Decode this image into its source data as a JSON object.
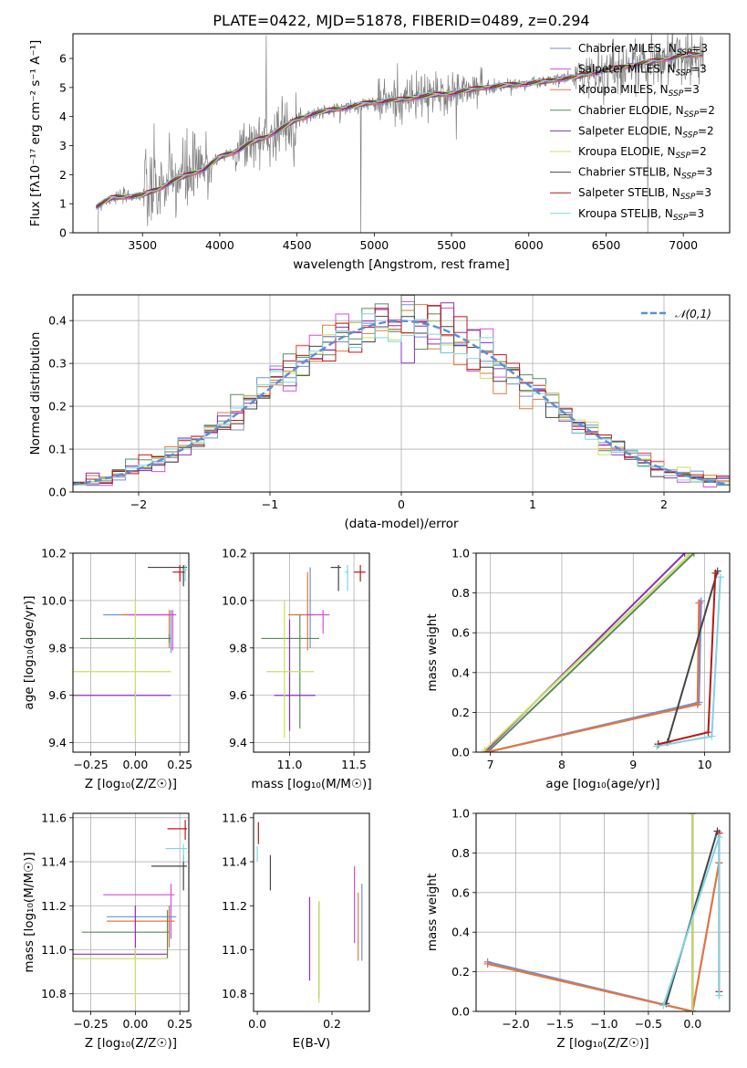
{
  "figure": {
    "title": "PLATE=0422, MJD=51878, FIBERID=0489, z=0.294"
  },
  "colors": {
    "Chabrier MILES": "#6f8fd6",
    "Salpeter MILES": "#d64fd6",
    "Kroupa MILES": "#e07a3a",
    "Chabrier ELODIE": "#5a8a5a",
    "Salpeter ELODIE": "#8e2fb5",
    "Kroupa ELODIE": "#c8e060",
    "Chabrier STELIB": "#444444",
    "Salpeter STELIB": "#b81818",
    "Kroupa STELIB": "#80d4e0",
    "data": "#808080",
    "normal": "#5b8ed6"
  },
  "chart_data": [
    {
      "id": "spectrum",
      "type": "line",
      "title": "PLATE=0422, MJD=51878, FIBERID=0489, z=0.294",
      "xlabel": "wavelength [Angstrom, rest frame]",
      "ylabel": "Flux [fλ10⁻¹⁷ erg cm⁻² s⁻¹ A⁻¹]",
      "xlim": [
        3050,
        7300
      ],
      "ylim": [
        0,
        6.85
      ],
      "xticks": [
        3500,
        4000,
        4500,
        5000,
        5500,
        6000,
        6500,
        7000
      ],
      "yticks": [
        0,
        1,
        2,
        3,
        4,
        5,
        6
      ],
      "grid": false,
      "legend": "top-right",
      "legend_entries": [
        "Chabrier MILES, N_SSP=3",
        "Salpeter MILES, N_SSP=3",
        "Kroupa MILES, N_SSP=3",
        "Chabrier ELODIE, N_SSP=2",
        "Salpeter ELODIE, N_SSP=2",
        "Kroupa ELODIE, N_SSP=2",
        "Chabrier STELIB, N_SSP=3",
        "Salpeter STELIB, N_SSP=3",
        "Kroupa STELIB, N_SSP=3"
      ],
      "model_x": [
        3200,
        3300,
        3400,
        3500,
        3600,
        3700,
        3800,
        3900,
        4000,
        4100,
        4200,
        4300,
        4400,
        4500,
        4600,
        4700,
        4800,
        4900,
        5000,
        5100,
        5200,
        5300,
        5400,
        5500,
        5600,
        5700,
        5800,
        5900,
        6000,
        6100,
        6200,
        6300,
        6400,
        6500,
        6600,
        6700,
        6800,
        6900,
        7000,
        7100
      ],
      "model_y": [
        0.9,
        1.2,
        1.25,
        1.3,
        1.5,
        1.8,
        2.0,
        2.2,
        2.6,
        2.8,
        3.1,
        3.3,
        3.6,
        3.9,
        4.1,
        4.2,
        4.3,
        4.4,
        4.5,
        4.55,
        4.6,
        4.7,
        4.75,
        4.8,
        4.9,
        5.0,
        5.05,
        5.1,
        5.15,
        5.2,
        5.3,
        5.35,
        5.5,
        5.6,
        5.7,
        5.8,
        5.9,
        6.0,
        6.1,
        6.15
      ]
    },
    {
      "id": "residuals",
      "type": "bar",
      "xlabel": "(data-model)/error",
      "ylabel": "Normed distribution",
      "xlim": [
        -2.5,
        2.5
      ],
      "ylim": [
        0,
        0.46
      ],
      "xticks": [
        -2,
        -1,
        0,
        1,
        2
      ],
      "yticks": [
        0.0,
        0.1,
        0.2,
        0.3,
        0.4
      ],
      "grid": true,
      "legend": "top-right",
      "legend_entries": [
        "𝒩(0,1)"
      ],
      "bin_width": 0.1
    },
    {
      "id": "age-vs-Z",
      "type": "scatter",
      "xlabel": "Z [log₁₀(Z/Z☉)]",
      "ylabel": "age  [log₁₀(age/yr)]",
      "xlim": [
        -0.35,
        0.3
      ],
      "ylim": [
        9.36,
        10.2
      ],
      "xticks": [
        -0.25,
        0.0,
        0.25
      ],
      "yticks": [
        9.4,
        9.6,
        9.8,
        10.0,
        10.2
      ],
      "grid": true,
      "points": [
        {
          "model": "Chabrier MILES",
          "x": 0.2,
          "y": 9.94,
          "xerr": [
            0.38,
            0.02
          ],
          "yerr": [
            0.16,
            0.02
          ]
        },
        {
          "model": "Kroupa MILES",
          "x": 0.19,
          "y": 9.94,
          "xerr": [
            0.27,
            0.02
          ],
          "yerr": [
            0.14,
            0.02
          ]
        },
        {
          "model": "Salpeter MILES",
          "x": 0.21,
          "y": 9.94,
          "xerr": [
            0.25,
            0.02
          ],
          "yerr": [
            0.15,
            0.02
          ]
        },
        {
          "model": "Chabrier ELODIE",
          "x": 0.19,
          "y": 9.84,
          "xerr": [
            0.5,
            0.01
          ],
          "yerr": [
            0.02,
            0.02
          ]
        },
        {
          "model": "Salpeter ELODIE",
          "x": 0.0,
          "y": 9.6,
          "xerr": [
            0.4,
            0.2
          ],
          "yerr": [
            0.02,
            0.02
          ]
        },
        {
          "model": "Kroupa ELODIE",
          "x": 0.0,
          "y": 9.7,
          "xerr": [
            0.4,
            0.2
          ],
          "yerr": [
            0.28,
            0.3
          ]
        },
        {
          "model": "Chabrier STELIB",
          "x": 0.27,
          "y": 10.14,
          "xerr": [
            0.2,
            0.02
          ],
          "yerr": [
            0.08,
            0.01
          ]
        },
        {
          "model": "Salpeter STELIB",
          "x": 0.25,
          "y": 10.12,
          "xerr": [
            0.04,
            0.03
          ],
          "yerr": [
            0.04,
            0.03
          ]
        },
        {
          "model": "Kroupa STELIB",
          "x": 0.28,
          "y": 10.13,
          "xerr": [
            0.02,
            0.01
          ],
          "yerr": [
            0.05,
            0.02
          ]
        }
      ]
    },
    {
      "id": "age-vs-mass",
      "type": "scatter",
      "xlabel": "mass [log₁₀(M/M☉)]",
      "ylabel": "",
      "xlim": [
        10.72,
        11.62
      ],
      "ylim": [
        9.36,
        10.2
      ],
      "xticks": [
        11.0,
        11.5
      ],
      "yticks": [
        9.4,
        9.6,
        9.8,
        10.0,
        10.2
      ],
      "grid": true,
      "points": [
        {
          "model": "Chabrier MILES",
          "x": 11.16,
          "y": 9.94,
          "xerr": [
            0.12,
            0.03
          ],
          "yerr": [
            0.14,
            0.2
          ]
        },
        {
          "model": "Kroupa MILES",
          "x": 11.14,
          "y": 9.94,
          "xerr": [
            0.15,
            0.03
          ],
          "yerr": [
            0.15,
            0.18
          ]
        },
        {
          "model": "Salpeter MILES",
          "x": 11.26,
          "y": 9.94,
          "xerr": [
            0.13,
            0.05
          ],
          "yerr": [
            0.08,
            0.02
          ]
        },
        {
          "model": "Chabrier ELODIE",
          "x": 11.08,
          "y": 9.84,
          "xerr": [
            0.3,
            0.15
          ],
          "yerr": [
            0.38,
            0.1
          ]
        },
        {
          "model": "Salpeter ELODIE",
          "x": 11.0,
          "y": 9.6,
          "xerr": [
            0.12,
            0.2
          ],
          "yerr": [
            0.15,
            0.32
          ]
        },
        {
          "model": "Kroupa ELODIE",
          "x": 10.96,
          "y": 9.7,
          "xerr": [
            0.14,
            0.23
          ],
          "yerr": [
            0.28,
            0.3
          ]
        },
        {
          "model": "Chabrier STELIB",
          "x": 11.38,
          "y": 10.14,
          "xerr": [
            0.06,
            0.02
          ],
          "yerr": [
            0.1,
            0.01
          ]
        },
        {
          "model": "Salpeter STELIB",
          "x": 11.55,
          "y": 10.12,
          "xerr": [
            0.05,
            0.04
          ],
          "yerr": [
            0.04,
            0.03
          ]
        },
        {
          "model": "Kroupa STELIB",
          "x": 11.45,
          "y": 10.12,
          "xerr": [
            0.02,
            0.01
          ],
          "yerr": [
            0.08,
            0.03
          ]
        }
      ]
    },
    {
      "id": "mass-weight-vs-age",
      "type": "line",
      "xlabel": "age  [log₁₀(age/yr)]",
      "ylabel": "mass weight",
      "xlim": [
        6.8,
        10.35
      ],
      "ylim": [
        0,
        1
      ],
      "xticks": [
        7,
        8,
        9,
        10
      ],
      "yticks": [
        0.0,
        0.2,
        0.4,
        0.6,
        0.8,
        1.0
      ],
      "grid": true,
      "series": [
        {
          "model": "Salpeter ELODIE",
          "x": [
            6.92,
            9.72
          ],
          "y": [
            0.0,
            1.0
          ]
        },
        {
          "model": "Kroupa ELODIE",
          "x": [
            6.92,
            9.78
          ],
          "y": [
            0.01,
            0.99
          ]
        },
        {
          "model": "Chabrier ELODIE",
          "x": [
            6.96,
            9.85
          ],
          "y": [
            0.0,
            1.0
          ]
        },
        {
          "model": "Chabrier MILES",
          "x": [
            6.95,
            9.92,
            9.95
          ],
          "y": [
            0.0,
            0.25,
            0.76
          ]
        },
        {
          "model": "Salpeter MILES",
          "x": [
            6.95,
            9.9,
            9.93
          ],
          "y": [
            0.0,
            0.24,
            0.75
          ]
        },
        {
          "model": "Kroupa MILES",
          "x": [
            6.95,
            9.9,
            9.92
          ],
          "y": [
            0.0,
            0.24,
            0.75
          ]
        },
        {
          "model": "Chabrier STELIB",
          "x": [
            9.35,
            9.48,
            10.18
          ],
          "y": [
            0.04,
            0.05,
            0.91
          ]
        },
        {
          "model": "Salpeter STELIB",
          "x": [
            9.35,
            10.05,
            10.15
          ],
          "y": [
            0.04,
            0.1,
            0.9
          ]
        },
        {
          "model": "Kroupa STELIB",
          "x": [
            9.33,
            10.1,
            10.22
          ],
          "y": [
            0.03,
            0.08,
            0.88
          ]
        }
      ]
    },
    {
      "id": "mass-vs-Z",
      "type": "scatter",
      "xlabel": "Z [log₁₀(Z/Z☉)]",
      "ylabel": "mass [log₁₀(M/M☉)]",
      "xlim": [
        -0.35,
        0.3
      ],
      "ylim": [
        10.72,
        11.62
      ],
      "xticks": [
        -0.25,
        0.0,
        0.25
      ],
      "yticks": [
        10.8,
        11.0,
        11.2,
        11.4,
        11.6
      ],
      "grid": true,
      "points": [
        {
          "model": "Chabrier MILES",
          "x": 0.19,
          "y": 11.15,
          "xerr": [
            0.35,
            0.04
          ],
          "yerr": [
            0.1,
            0.05
          ]
        },
        {
          "model": "Kroupa MILES",
          "x": 0.19,
          "y": 11.13,
          "xerr": [
            0.35,
            0.03
          ],
          "yerr": [
            0.12,
            0.06
          ]
        },
        {
          "model": "Salpeter MILES",
          "x": 0.2,
          "y": 11.25,
          "xerr": [
            0.38,
            0.02
          ],
          "yerr": [
            0.2,
            0.05
          ]
        },
        {
          "model": "Chabrier ELODIE",
          "x": 0.18,
          "y": 11.08,
          "xerr": [
            0.48,
            0.01
          ],
          "yerr": [
            0.12,
            0.1
          ]
        },
        {
          "model": "Salpeter ELODIE",
          "x": 0.0,
          "y": 10.98,
          "xerr": [
            0.35,
            0.18
          ],
          "yerr": [
            0.02,
            0.22
          ]
        },
        {
          "model": "Kroupa ELODIE",
          "x": 0.0,
          "y": 10.96,
          "xerr": [
            0.35,
            0.18
          ],
          "yerr": [
            0.2,
            0.05
          ]
        },
        {
          "model": "Chabrier STELIB",
          "x": 0.27,
          "y": 11.38,
          "xerr": [
            0.18,
            0.02
          ],
          "yerr": [
            0.11,
            0.05
          ]
        },
        {
          "model": "Salpeter STELIB",
          "x": 0.28,
          "y": 11.55,
          "xerr": [
            0.1,
            0.01
          ],
          "yerr": [
            0.05,
            0.04
          ]
        },
        {
          "model": "Kroupa STELIB",
          "x": 0.27,
          "y": 11.46,
          "xerr": [
            0.1,
            0.02
          ],
          "yerr": [
            0.06,
            0.02
          ]
        }
      ]
    },
    {
      "id": "mass-vs-EBV",
      "type": "scatter",
      "xlabel": "E(B-V)",
      "ylabel": "",
      "xlim": [
        -0.01,
        0.3
      ],
      "ylim": [
        10.72,
        11.62
      ],
      "xticks": [
        0.0,
        0.2
      ],
      "yticks": [
        10.8,
        11.0,
        11.2,
        11.4,
        11.6
      ],
      "grid": false,
      "points": [
        {
          "model": "Chabrier MILES",
          "x": 0.28,
          "y": 11.15,
          "yerr": [
            0.2,
            0.15
          ]
        },
        {
          "model": "Kroupa MILES",
          "x": 0.27,
          "y": 11.13,
          "yerr": [
            0.18,
            0.13
          ]
        },
        {
          "model": "Salpeter MILES",
          "x": 0.26,
          "y": 11.25,
          "yerr": [
            0.22,
            0.13
          ]
        },
        {
          "model": "Chabrier ELODIE",
          "x": 0.165,
          "y": 11.08,
          "yerr": [
            0.3,
            0.14
          ]
        },
        {
          "model": "Salpeter ELODIE",
          "x": 0.14,
          "y": 11.0,
          "yerr": [
            0.14,
            0.24
          ]
        },
        {
          "model": "Kroupa ELODIE",
          "x": 0.165,
          "y": 10.96,
          "yerr": [
            0.2,
            0.26
          ]
        },
        {
          "model": "Chabrier STELIB",
          "x": 0.035,
          "y": 11.35,
          "yerr": [
            0.08,
            0.08
          ]
        },
        {
          "model": "Salpeter STELIB",
          "x": 0.003,
          "y": 11.52,
          "yerr": [
            0.04,
            0.06
          ]
        },
        {
          "model": "Kroupa STELIB",
          "x": 0.0,
          "y": 11.45,
          "yerr": [
            0.05,
            0.02
          ]
        }
      ]
    },
    {
      "id": "mass-weight-vs-Z",
      "type": "line",
      "xlabel": "Z [log₁₀(Z/Z☉)]",
      "ylabel": "mass weight",
      "xlim": [
        -2.45,
        0.42
      ],
      "ylim": [
        0,
        1
      ],
      "xticks": [
        -2.0,
        -1.5,
        -1.0,
        -0.5,
        0.0
      ],
      "yticks": [
        0.0,
        0.2,
        0.4,
        0.6,
        0.8,
        1.0
      ],
      "grid": true,
      "series": [
        {
          "model": "Chabrier MILES",
          "x": [
            -2.32,
            0.0,
            0.3
          ],
          "y": [
            0.25,
            0.0,
            0.75
          ]
        },
        {
          "model": "Salpeter MILES",
          "x": [
            -2.32,
            0.0,
            0.3
          ],
          "y": [
            0.24,
            0.0,
            0.75
          ]
        },
        {
          "model": "Kroupa MILES",
          "x": [
            -2.32,
            0.0,
            0.3
          ],
          "y": [
            0.24,
            0.0,
            0.75
          ]
        },
        {
          "model": "Chabrier ELODIE",
          "x": [
            0.0,
            0.0
          ],
          "y": [
            0.0,
            1.0
          ]
        },
        {
          "model": "Salpeter ELODIE",
          "x": [
            0.0,
            0.0
          ],
          "y": [
            0.0,
            1.0
          ]
        },
        {
          "model": "Kroupa ELODIE",
          "x": [
            0.0,
            0.0
          ],
          "y": [
            0.0,
            1.0
          ]
        },
        {
          "model": "Chabrier STELIB",
          "x": [
            -0.3,
            0.28
          ],
          "y": [
            0.04,
            0.91
          ]
        },
        {
          "model": "Salpeter STELIB",
          "x": [
            0.3,
            0.3
          ],
          "y": [
            0.1,
            0.9
          ]
        },
        {
          "model": "Kroupa STELIB",
          "x": [
            -0.33,
            0.3,
            0.3
          ],
          "y": [
            0.03,
            0.88,
            0.08
          ]
        }
      ]
    }
  ]
}
